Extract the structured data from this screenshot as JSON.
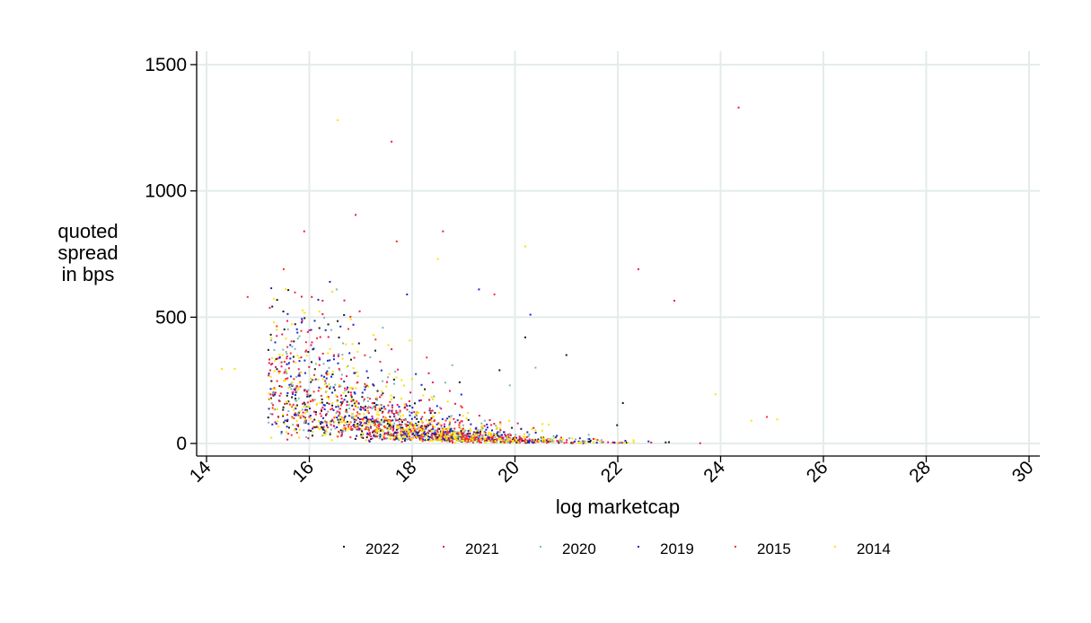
{
  "chart_data": {
    "type": "scatter",
    "title": "",
    "xlabel": "log marketcap",
    "ylabel": [
      "quoted",
      "spread",
      "in bps"
    ],
    "xlim": [
      14,
      30
    ],
    "ylim": [
      0,
      1500
    ],
    "xticks": [
      14,
      16,
      18,
      20,
      22,
      24,
      26,
      28,
      30
    ],
    "yticks": [
      0,
      500,
      1000,
      1500
    ],
    "xtick_labels": [
      "14",
      "16",
      "18",
      "20",
      "22",
      "24",
      "26",
      "28",
      "30"
    ],
    "ytick_labels": [
      "0",
      "500",
      "1000",
      "1500"
    ],
    "grid": true,
    "legend_position": "bottom",
    "series": [
      {
        "name": "2022",
        "color": "#1a1a1a",
        "seed": 11,
        "n": 340,
        "outliers": [
          [
            20.2,
            420
          ],
          [
            21.0,
            350
          ],
          [
            19.7,
            290
          ],
          [
            22.1,
            160
          ]
        ]
      },
      {
        "name": "2021",
        "color": "#e8175d",
        "seed": 23,
        "n": 340,
        "outliers": [
          [
            24.35,
            1330
          ],
          [
            17.6,
            1195
          ],
          [
            16.9,
            905
          ],
          [
            15.9,
            840
          ],
          [
            22.4,
            690
          ],
          [
            23.1,
            565
          ],
          [
            18.6,
            840
          ]
        ]
      },
      {
        "name": "2020",
        "color": "#7fb5b5",
        "seed": 37,
        "n": 260,
        "outliers": [
          [
            20.4,
            300
          ],
          [
            19.9,
            230
          ]
        ]
      },
      {
        "name": "2019",
        "color": "#1d24c9",
        "seed": 41,
        "n": 340,
        "outliers": [
          [
            16.4,
            640
          ],
          [
            17.9,
            590
          ],
          [
            19.3,
            610
          ],
          [
            20.3,
            510
          ]
        ]
      },
      {
        "name": "2015",
        "color": "#ff2d2d",
        "seed": 53,
        "n": 320,
        "outliers": [
          [
            17.7,
            800
          ],
          [
            15.5,
            690
          ],
          [
            14.8,
            580
          ],
          [
            19.6,
            590
          ],
          [
            24.9,
            105
          ]
        ]
      },
      {
        "name": "2014",
        "color": "#ffe000",
        "seed": 67,
        "n": 420,
        "outliers": [
          [
            16.55,
            1280
          ],
          [
            18.5,
            730
          ],
          [
            20.2,
            780
          ],
          [
            14.3,
            295
          ],
          [
            14.55,
            295
          ],
          [
            23.9,
            195
          ],
          [
            25.1,
            95
          ],
          [
            24.6,
            90
          ]
        ]
      }
    ]
  }
}
